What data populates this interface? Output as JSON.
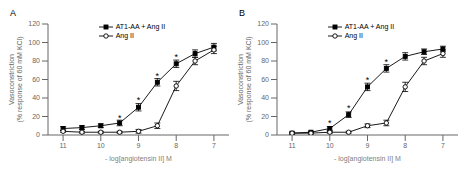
{
  "chart_data": [
    {
      "type": "line",
      "title": "A",
      "x_label": "- log[angiotensin II] M",
      "y_label": "Vasoconstriction\n(% response of 60 mM KCl)",
      "xlim": [
        11.4,
        6.6
      ],
      "xticks": [
        11,
        10,
        9,
        8,
        7
      ],
      "ylim": [
        0,
        120
      ],
      "yticks": [
        0,
        20,
        40,
        60,
        80,
        100,
        120
      ],
      "grid": false,
      "legend": "upper left",
      "x": [
        11,
        10.5,
        10,
        9.5,
        9,
        8.5,
        8,
        7.5,
        7
      ],
      "series": [
        {
          "name": "AT1-AA + Ang II",
          "color": "black",
          "marker": "square",
          "values": [
            7,
            8,
            10,
            13,
            30,
            57,
            77,
            88,
            95
          ],
          "errors": [
            2,
            2,
            2,
            3,
            4,
            4,
            4,
            4,
            4
          ]
        },
        {
          "name": "Ang II",
          "color": "black",
          "marker": "open_circle",
          "values": [
            4,
            3,
            3,
            3,
            4,
            10,
            53,
            80,
            92
          ],
          "errors": [
            1,
            1,
            1,
            1,
            2,
            3,
            5,
            4,
            4
          ]
        }
      ],
      "annotations": [
        {
          "text": "*",
          "x": 9.5,
          "y": 18
        },
        {
          "text": "*",
          "x": 9,
          "y": 37
        },
        {
          "text": "*",
          "x": 8.5,
          "y": 64
        },
        {
          "text": "*",
          "x": 8,
          "y": 84
        }
      ]
    },
    {
      "type": "line",
      "title": "B",
      "x_label": "- log[angiotensin II] M",
      "y_label": "Vasoconstriction\n(% response of 60 mM KCl)",
      "xlim": [
        11.4,
        6.6
      ],
      "xticks": [
        11,
        10,
        9,
        8,
        7
      ],
      "ylim": [
        0,
        120
      ],
      "yticks": [
        0,
        20,
        40,
        60,
        80,
        100,
        120
      ],
      "grid": false,
      "legend": "upper left",
      "x": [
        11,
        10.5,
        10,
        9.5,
        9,
        8.5,
        8,
        7.5,
        7
      ],
      "series": [
        {
          "name": "AT1-AA + Ang II",
          "color": "black",
          "marker": "square",
          "values": [
            2,
            3,
            7,
            22,
            52,
            72,
            85,
            90,
            93
          ],
          "errors": [
            1,
            1,
            2,
            3,
            4,
            4,
            4,
            3,
            3
          ]
        },
        {
          "name": "Ang II",
          "color": "black",
          "marker": "open_circle",
          "values": [
            2,
            2,
            3,
            3,
            10,
            13,
            52,
            80,
            88
          ],
          "errors": [
            1,
            1,
            1,
            1,
            2,
            3,
            5,
            4,
            4
          ]
        }
      ],
      "annotations": [
        {
          "text": "*",
          "x": 10,
          "y": 13
        },
        {
          "text": "*",
          "x": 9.5,
          "y": 29
        },
        {
          "text": "*",
          "x": 9,
          "y": 59
        },
        {
          "text": "*",
          "x": 8.5,
          "y": 79
        }
      ]
    }
  ]
}
